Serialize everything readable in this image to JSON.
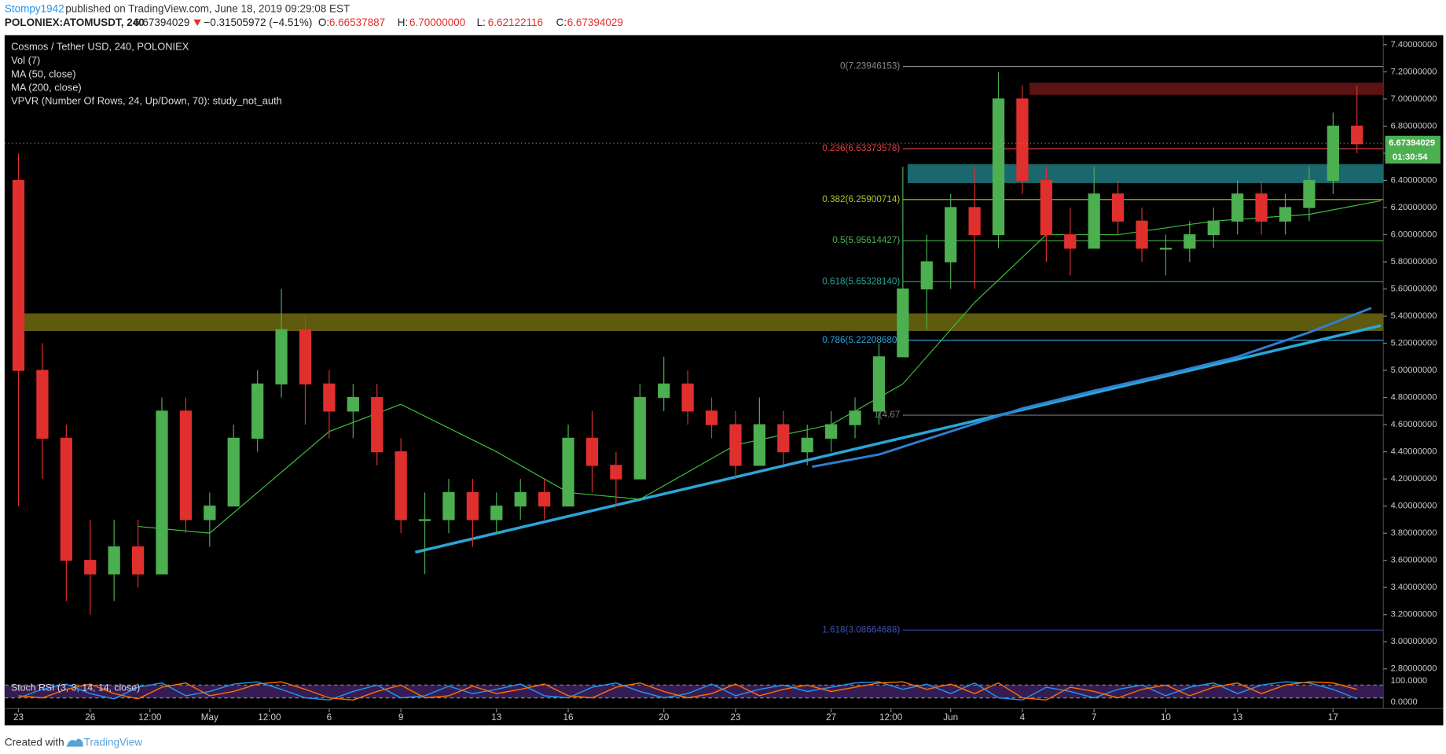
{
  "header": {
    "publisher": "Stompy1942",
    "published": "published on TradingView.com, June 18, 2019 09:29:08 EST",
    "symbol": "POLONIEX:ATOMUSDT, 240",
    "change": "−0.31505972 (−4.51%)",
    "ohlc": [
      {
        "label": "O:",
        "value": "6.66537887"
      },
      {
        "label": "H:",
        "value": "6.70000000"
      },
      {
        "label": "L:",
        "value": "6.62122116"
      },
      {
        "label": "C:",
        "value": "6.67394029"
      }
    ]
  },
  "footer": {
    "created": "Created with",
    "brand": "TradingView"
  },
  "chart_data": {
    "type": "candlestick",
    "title": "Cosmos / Tether USD, 240, POLONIEX",
    "studies": [
      "Vol (7)",
      "MA (50, close)",
      "MA (200, close)",
      "VPVR (Number Of Rows, 24, Up/Down, 70): study_not_auth"
    ],
    "up_color": "#4caf50",
    "down_color": "#e0302e",
    "xlim": [
      -0.58,
      57.1
    ],
    "xticks": [
      {
        "value": 0,
        "label": "23"
      },
      {
        "value": 3,
        "label": "26"
      },
      {
        "value": 5.5,
        "label": "12:00"
      },
      {
        "value": 8,
        "label": "May"
      },
      {
        "value": 10.5,
        "label": "12:00"
      },
      {
        "value": 13,
        "label": "6"
      },
      {
        "value": 16,
        "label": "9"
      },
      {
        "value": 20,
        "label": "13"
      },
      {
        "value": 23,
        "label": "16"
      },
      {
        "value": 27,
        "label": "20"
      },
      {
        "value": 30,
        "label": "23"
      },
      {
        "value": 34,
        "label": "27"
      },
      {
        "value": 36.5,
        "label": "12:00"
      },
      {
        "value": 39,
        "label": "Jun"
      },
      {
        "value": 42,
        "label": "4"
      },
      {
        "value": 45,
        "label": "7"
      },
      {
        "value": 48,
        "label": "10"
      },
      {
        "value": 51,
        "label": "13"
      },
      {
        "value": 55,
        "label": "17"
      }
    ],
    "ylim": [
      2.76,
      7.47
    ],
    "yticks": [
      {
        "value": 2.8,
        "label": "2.80000000"
      },
      {
        "value": 3.0,
        "label": "3.00000000"
      },
      {
        "value": 3.2,
        "label": "3.20000000"
      },
      {
        "value": 3.4,
        "label": "3.40000000"
      },
      {
        "value": 3.6,
        "label": "3.60000000"
      },
      {
        "value": 3.8,
        "label": "3.80000000"
      },
      {
        "value": 4.0,
        "label": "4.00000000"
      },
      {
        "value": 4.2,
        "label": "4.20000000"
      },
      {
        "value": 4.4,
        "label": "4.40000000"
      },
      {
        "value": 4.6,
        "label": "4.60000000"
      },
      {
        "value": 4.8,
        "label": "4.80000000"
      },
      {
        "value": 5.0,
        "label": "5.00000000"
      },
      {
        "value": 5.2,
        "label": "5.20000000"
      },
      {
        "value": 5.4,
        "label": "5.40000000"
      },
      {
        "value": 5.6,
        "label": "5.60000000"
      },
      {
        "value": 5.8,
        "label": "5.80000000"
      },
      {
        "value": 6.0,
        "label": "6.00000000"
      },
      {
        "value": 6.2,
        "label": "6.20000000"
      },
      {
        "value": 6.4,
        "label": "6.40000000"
      },
      {
        "value": 6.6,
        "label": "6.60000000"
      },
      {
        "value": 6.8,
        "label": "6.80000000"
      },
      {
        "value": 7.0,
        "label": "7.00000000"
      },
      {
        "value": 7.2,
        "label": "7.20000000"
      },
      {
        "value": 7.4,
        "label": "7.40000000"
      }
    ],
    "x": [
      0,
      1,
      2,
      3,
      4,
      5,
      6,
      7,
      8,
      9,
      10,
      11,
      12,
      13,
      14,
      15,
      16,
      17,
      18,
      19,
      20,
      21,
      22,
      23,
      24,
      25,
      26,
      27,
      28,
      29,
      30,
      31,
      32,
      33,
      34,
      35,
      36,
      37,
      38,
      39,
      40,
      41,
      42,
      43,
      44,
      45,
      46,
      47,
      48,
      49,
      50,
      51,
      52,
      53,
      54,
      55,
      56
    ],
    "open": [
      6.4,
      5.0,
      4.5,
      3.6,
      3.5,
      3.7,
      3.5,
      4.7,
      3.9,
      4.0,
      4.5,
      4.9,
      5.3,
      4.9,
      4.7,
      4.8,
      4.4,
      3.9,
      3.9,
      4.1,
      3.9,
      4.0,
      4.1,
      4.0,
      4.5,
      4.3,
      4.2,
      4.8,
      4.9,
      4.7,
      4.6,
      4.3,
      4.6,
      4.4,
      4.5,
      4.6,
      4.7,
      5.1,
      5.6,
      5.8,
      6.2,
      6.0,
      7.0,
      6.4,
      6.0,
      5.9,
      6.3,
      6.1,
      5.9,
      5.9,
      6.0,
      6.1,
      6.3,
      6.1,
      6.2,
      6.4,
      6.8
    ],
    "high": [
      6.6,
      5.2,
      4.6,
      3.9,
      3.9,
      3.9,
      4.8,
      4.8,
      4.1,
      4.6,
      5.0,
      5.6,
      5.4,
      5.0,
      4.9,
      4.9,
      4.5,
      4.1,
      4.2,
      4.2,
      4.1,
      4.2,
      4.2,
      4.6,
      4.7,
      4.4,
      4.9,
      5.1,
      5.0,
      4.8,
      4.7,
      4.8,
      4.7,
      4.6,
      4.7,
      4.8,
      5.2,
      6.5,
      6.0,
      6.3,
      6.5,
      7.2,
      7.1,
      6.5,
      6.2,
      6.5,
      6.4,
      6.2,
      6.0,
      6.1,
      6.2,
      6.4,
      6.4,
      6.3,
      6.5,
      6.9,
      7.1
    ],
    "low": [
      4.0,
      4.2,
      3.3,
      3.2,
      3.3,
      3.4,
      3.5,
      3.8,
      3.7,
      4.0,
      4.4,
      4.8,
      4.6,
      4.5,
      4.5,
      4.3,
      3.8,
      3.5,
      3.8,
      3.7,
      3.8,
      3.9,
      3.9,
      4.0,
      4.1,
      4.0,
      4.2,
      4.7,
      4.6,
      4.5,
      4.2,
      4.3,
      4.3,
      4.3,
      4.4,
      4.5,
      4.6,
      5.1,
      5.3,
      5.6,
      5.6,
      5.9,
      6.3,
      5.8,
      5.7,
      5.9,
      6.0,
      5.8,
      5.7,
      5.8,
      5.9,
      6.0,
      6.0,
      6.0,
      6.1,
      6.3,
      6.6
    ],
    "close": [
      5.0,
      4.5,
      3.6,
      3.5,
      3.7,
      3.5,
      4.7,
      3.9,
      4.0,
      4.5,
      4.9,
      5.3,
      4.9,
      4.7,
      4.8,
      4.4,
      3.9,
      3.9,
      4.1,
      3.9,
      4.0,
      4.1,
      4.0,
      4.5,
      4.3,
      4.2,
      4.8,
      4.9,
      4.7,
      4.6,
      4.3,
      4.6,
      4.4,
      4.5,
      4.6,
      4.7,
      5.1,
      5.6,
      5.8,
      6.2,
      6.0,
      7.0,
      6.4,
      6.0,
      5.9,
      6.3,
      6.1,
      5.9,
      5.9,
      6.0,
      6.1,
      6.3,
      6.1,
      6.2,
      6.4,
      6.8,
      6.67
    ],
    "ma50": {
      "color": "#3ec13e",
      "x": [
        5,
        8,
        10,
        13,
        16,
        20,
        23,
        26,
        30,
        34,
        37,
        40,
        43,
        46,
        50,
        54,
        57
      ],
      "values": [
        3.85,
        3.8,
        4.1,
        4.55,
        4.75,
        4.4,
        4.1,
        4.05,
        4.45,
        4.6,
        4.9,
        5.5,
        6.0,
        6.0,
        6.1,
        6.15,
        6.25
      ]
    },
    "ma200": {
      "color": "#2f7fd0",
      "x": [
        33.2,
        36,
        39,
        42,
        45,
        48,
        51,
        54,
        56.6
      ],
      "values": [
        4.29,
        4.38,
        4.55,
        4.72,
        4.85,
        4.97,
        5.1,
        5.28,
        5.46
      ]
    },
    "trendline": {
      "color": "#2aa6d6",
      "x": [
        16.6,
        57
      ],
      "values": [
        3.66,
        5.33
      ]
    },
    "zones": [
      {
        "color": "#6b1616",
        "x": [
          42.3,
          57.1
        ],
        "range": [
          7.03,
          7.12
        ]
      },
      {
        "color": "#1f7a80",
        "x": [
          37.2,
          57.1
        ],
        "range": [
          6.38,
          6.52
        ]
      },
      {
        "color": "#6f6a10",
        "x": [
          -0.1,
          57.1
        ],
        "range": [
          5.29,
          5.42
        ]
      }
    ],
    "fib": [
      {
        "label": "0(7.23946153)",
        "value": 7.23946153,
        "color": "#888888"
      },
      {
        "label": "0.236(6.63373578)",
        "value": 6.63373578,
        "color": "#e04040"
      },
      {
        "label": "0.382(6.25900714)",
        "value": 6.25900714,
        "color": "#b5c229"
      },
      {
        "label": "0.5(5.95614427)",
        "value": 5.95614427,
        "color": "#4caf50"
      },
      {
        "label": "0.618(5.65328140)",
        "value": 5.6532814,
        "color": "#26a69a"
      },
      {
        "label": "0.786(5.22208680)",
        "value": 5.2220868,
        "color": "#2ea3d8"
      },
      {
        "label": "1(4.67",
        "value": 4.67,
        "color": "#777777"
      },
      {
        "label": "1.618(3.08664688)",
        "value": 3.08664688,
        "color": "#3f51b5"
      }
    ],
    "fib_start": 37,
    "last_price": 6.67394029,
    "countdown": "01:30:54",
    "stoch": {
      "title": "Stoch RSI (3, 3, 14, 14, close)",
      "ylim": [
        0,
        100
      ],
      "yticks": [
        {
          "value": 100,
          "label": "100.0000"
        },
        {
          "value": 0,
          "label": "0.0000"
        }
      ],
      "bands": [
        20,
        80
      ],
      "series": [
        {
          "color": "#2196f3",
          "values": [
            20,
            60,
            85,
            40,
            15,
            70,
            90,
            30,
            50,
            85,
            95,
            60,
            20,
            10,
            50,
            80,
            20,
            30,
            75,
            40,
            60,
            85,
            30,
            20,
            70,
            90,
            50,
            20,
            40,
            85,
            30,
            60,
            80,
            50,
            70,
            90,
            95,
            60,
            85,
            40,
            90,
            20,
            10,
            70,
            50,
            20,
            60,
            80,
            30,
            70,
            90,
            40,
            80,
            95,
            90,
            60,
            15
          ]
        },
        {
          "color": "#ff6d00",
          "values": [
            30,
            20,
            60,
            85,
            40,
            15,
            70,
            90,
            30,
            50,
            85,
            95,
            60,
            20,
            10,
            50,
            80,
            20,
            30,
            75,
            40,
            60,
            85,
            30,
            20,
            70,
            90,
            50,
            20,
            40,
            85,
            30,
            60,
            80,
            50,
            70,
            90,
            95,
            60,
            85,
            40,
            90,
            20,
            10,
            70,
            50,
            20,
            60,
            80,
            30,
            70,
            90,
            40,
            80,
            95,
            90,
            60
          ]
        }
      ]
    }
  }
}
